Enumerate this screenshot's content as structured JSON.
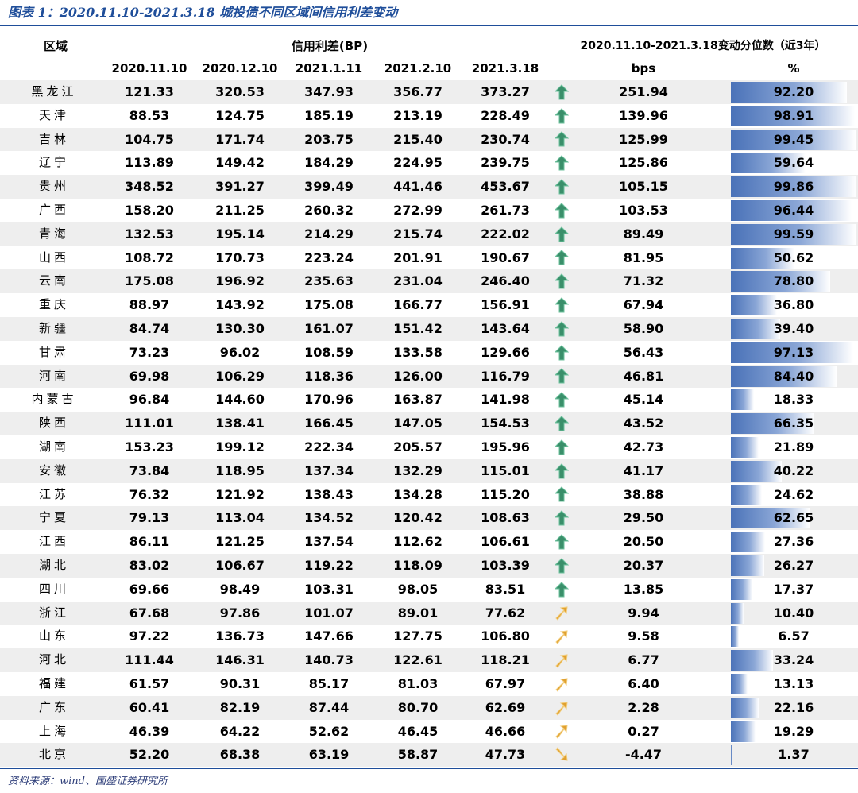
{
  "title": "图表 1：2020.11.10-2021.3.18 城投债不同区域间信用利差变动",
  "headers": {
    "region": "区域",
    "spread_group": "信用利差(BP)",
    "change_group": "2020.11.10-2021.3.18变动分位数（近3年）",
    "dates": [
      "2020.11.10",
      "2020.12.10",
      "2021.1.11",
      "2021.2.10",
      "2021.3.18"
    ],
    "bps": "bps",
    "pct": "%"
  },
  "colors": {
    "accent": "#1f4e9a",
    "up_arrow": "#3a8f6a",
    "down_arrow": "#e0a030",
    "bar": "#4a72b8"
  },
  "rows": [
    {
      "region": "黑龙江",
      "v": [
        "121.33",
        "320.53",
        "347.93",
        "356.77",
        "373.27"
      ],
      "icon": "up-arrow-icon",
      "bps": "251.94",
      "pct": "92.20",
      "level": 92.2
    },
    {
      "region": "天津",
      "v": [
        "88.53",
        "124.75",
        "185.19",
        "213.19",
        "228.49"
      ],
      "icon": "up-arrow-icon",
      "bps": "139.96",
      "pct": "98.91",
      "level": 98.91
    },
    {
      "region": "吉林",
      "v": [
        "104.75",
        "171.74",
        "203.75",
        "215.40",
        "230.74"
      ],
      "icon": "up-arrow-icon",
      "bps": "125.99",
      "pct": "99.45",
      "level": 99.45
    },
    {
      "region": "辽宁",
      "v": [
        "113.89",
        "149.42",
        "184.29",
        "224.95",
        "239.75"
      ],
      "icon": "up-arrow-icon",
      "bps": "125.86",
      "pct": "59.64",
      "level": 59.64
    },
    {
      "region": "贵州",
      "v": [
        "348.52",
        "391.27",
        "399.49",
        "441.46",
        "453.67"
      ],
      "icon": "up-arrow-icon",
      "bps": "105.15",
      "pct": "99.86",
      "level": 99.86
    },
    {
      "region": "广西",
      "v": [
        "158.20",
        "211.25",
        "260.32",
        "272.99",
        "261.73"
      ],
      "icon": "up-arrow-icon",
      "bps": "103.53",
      "pct": "96.44",
      "level": 96.44
    },
    {
      "region": "青海",
      "v": [
        "132.53",
        "195.14",
        "214.29",
        "215.74",
        "222.02"
      ],
      "icon": "up-arrow-icon",
      "bps": "89.49",
      "pct": "99.59",
      "level": 99.59
    },
    {
      "region": "山西",
      "v": [
        "108.72",
        "170.73",
        "223.24",
        "201.91",
        "190.67"
      ],
      "icon": "up-arrow-icon",
      "bps": "81.95",
      "pct": "50.62",
      "level": 50.62
    },
    {
      "region": "云南",
      "v": [
        "175.08",
        "196.92",
        "235.63",
        "231.04",
        "246.40"
      ],
      "icon": "up-arrow-icon",
      "bps": "71.32",
      "pct": "78.80",
      "level": 78.8
    },
    {
      "region": "重庆",
      "v": [
        "88.97",
        "143.92",
        "175.08",
        "166.77",
        "156.91"
      ],
      "icon": "up-arrow-icon",
      "bps": "67.94",
      "pct": "36.80",
      "level": 36.8
    },
    {
      "region": "新疆",
      "v": [
        "84.74",
        "130.30",
        "161.07",
        "151.42",
        "143.64"
      ],
      "icon": "up-arrow-icon",
      "bps": "58.90",
      "pct": "39.40",
      "level": 39.4
    },
    {
      "region": "甘肃",
      "v": [
        "73.23",
        "96.02",
        "108.59",
        "133.58",
        "129.66"
      ],
      "icon": "up-arrow-icon",
      "bps": "56.43",
      "pct": "97.13",
      "level": 97.13
    },
    {
      "region": "河南",
      "v": [
        "69.98",
        "106.29",
        "118.36",
        "126.00",
        "116.79"
      ],
      "icon": "up-arrow-icon",
      "bps": "46.81",
      "pct": "84.40",
      "level": 84.4
    },
    {
      "region": "内蒙古",
      "v": [
        "96.84",
        "144.60",
        "170.96",
        "163.87",
        "141.98"
      ],
      "icon": "up-arrow-icon",
      "bps": "45.14",
      "pct": "18.33",
      "level": 18.33
    },
    {
      "region": "陕西",
      "v": [
        "111.01",
        "138.41",
        "166.45",
        "147.05",
        "154.53"
      ],
      "icon": "up-arrow-icon",
      "bps": "43.52",
      "pct": "66.35",
      "level": 66.35
    },
    {
      "region": "湖南",
      "v": [
        "153.23",
        "199.12",
        "222.34",
        "205.57",
        "195.96"
      ],
      "icon": "up-arrow-icon",
      "bps": "42.73",
      "pct": "21.89",
      "level": 21.89
    },
    {
      "region": "安徽",
      "v": [
        "73.84",
        "118.95",
        "137.34",
        "132.29",
        "115.01"
      ],
      "icon": "up-arrow-icon",
      "bps": "41.17",
      "pct": "40.22",
      "level": 40.22
    },
    {
      "region": "江苏",
      "v": [
        "76.32",
        "121.92",
        "138.43",
        "134.28",
        "115.20"
      ],
      "icon": "up-arrow-icon",
      "bps": "38.88",
      "pct": "24.62",
      "level": 24.62
    },
    {
      "region": "宁夏",
      "v": [
        "79.13",
        "113.04",
        "134.52",
        "120.42",
        "108.63"
      ],
      "icon": "up-arrow-icon",
      "bps": "29.50",
      "pct": "62.65",
      "level": 62.65
    },
    {
      "region": "江西",
      "v": [
        "86.11",
        "121.25",
        "137.54",
        "112.62",
        "106.61"
      ],
      "icon": "up-arrow-icon",
      "bps": "20.50",
      "pct": "27.36",
      "level": 27.36
    },
    {
      "region": "湖北",
      "v": [
        "83.02",
        "106.67",
        "119.22",
        "118.09",
        "103.39"
      ],
      "icon": "up-arrow-icon",
      "bps": "20.37",
      "pct": "26.27",
      "level": 26.27
    },
    {
      "region": "四川",
      "v": [
        "69.66",
        "98.49",
        "103.31",
        "98.05",
        "83.51"
      ],
      "icon": "up-arrow-icon",
      "bps": "13.85",
      "pct": "17.37",
      "level": 17.37
    },
    {
      "region": "浙江",
      "v": [
        "67.68",
        "97.86",
        "101.07",
        "89.01",
        "77.62"
      ],
      "icon": "up-right-arrow-icon",
      "bps": "9.94",
      "pct": "10.40",
      "level": 10.4
    },
    {
      "region": "山东",
      "v": [
        "97.22",
        "136.73",
        "147.66",
        "127.75",
        "106.80"
      ],
      "icon": "up-right-arrow-icon",
      "bps": "9.58",
      "pct": "6.57",
      "level": 6.57
    },
    {
      "region": "河北",
      "v": [
        "111.44",
        "146.31",
        "140.73",
        "122.61",
        "118.21"
      ],
      "icon": "up-right-arrow-icon",
      "bps": "6.77",
      "pct": "33.24",
      "level": 33.24
    },
    {
      "region": "福建",
      "v": [
        "61.57",
        "90.31",
        "85.17",
        "81.03",
        "67.97"
      ],
      "icon": "up-right-arrow-icon",
      "bps": "6.40",
      "pct": "13.13",
      "level": 13.13
    },
    {
      "region": "广东",
      "v": [
        "60.41",
        "82.19",
        "87.44",
        "80.70",
        "62.69"
      ],
      "icon": "up-right-arrow-icon",
      "bps": "2.28",
      "pct": "22.16",
      "level": 22.16
    },
    {
      "region": "上海",
      "v": [
        "46.39",
        "64.22",
        "52.62",
        "46.45",
        "46.66"
      ],
      "icon": "up-right-arrow-icon",
      "bps": "0.27",
      "pct": "19.29",
      "level": 19.29
    },
    {
      "region": "北京",
      "v": [
        "52.20",
        "68.38",
        "63.19",
        "58.87",
        "47.73"
      ],
      "icon": "down-right-arrow-icon",
      "bps": "-4.47",
      "pct": "1.37",
      "level": 1.37
    }
  ],
  "source": "资料来源：wind、国盛证券研究所"
}
